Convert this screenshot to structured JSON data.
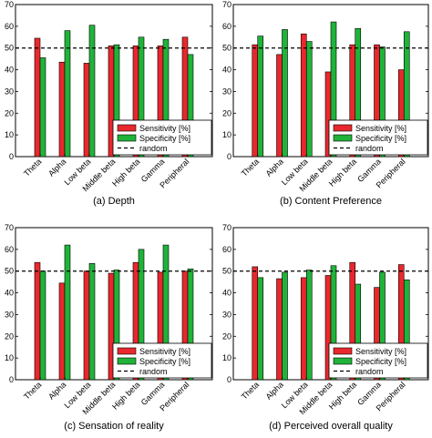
{
  "colors": {
    "sensitivity": "#e8282d",
    "specificity": "#1fb33a",
    "random_line": "#000000"
  },
  "chart_data": [
    {
      "type": "bar",
      "caption": "(a)  Depth",
      "categories": [
        "Theta",
        "Alpha",
        "Low beta",
        "Middle beta",
        "High beta",
        "Gamma",
        "Peripheral"
      ],
      "series": [
        {
          "name": "Sensitivity [%]",
          "values": [
            54.5,
            43.5,
            43,
            51,
            51,
            51,
            55
          ]
        },
        {
          "name": "Specificity [%]",
          "values": [
            45.5,
            58,
            60.5,
            51.5,
            55,
            54,
            47
          ]
        }
      ],
      "random": 50,
      "ylim": [
        0,
        70
      ],
      "yticks": [
        0,
        10,
        20,
        30,
        40,
        50,
        60,
        70
      ],
      "legend": [
        "Sensitivity [%]",
        "Specificity [%]",
        "random"
      ],
      "legend_position": "lower-right"
    },
    {
      "type": "bar",
      "caption": "(b)  Content Preference",
      "categories": [
        "Theta",
        "Alpha",
        "Low beta",
        "Middle beta",
        "High beta",
        "Gamma",
        "Peripheral"
      ],
      "series": [
        {
          "name": "Sensitivity [%]",
          "values": [
            51.5,
            47,
            56.5,
            39,
            51.5,
            51.5,
            40
          ]
        },
        {
          "name": "Specificity [%]",
          "values": [
            55.5,
            58.5,
            53,
            62,
            59,
            50.5,
            57.5
          ]
        }
      ],
      "random": 50,
      "ylim": [
        0,
        70
      ],
      "yticks": [
        0,
        10,
        20,
        30,
        40,
        50,
        60,
        70
      ],
      "legend": [
        "Sensitivity [%]",
        "Specificity [%]",
        "random"
      ],
      "legend_position": "lower-right"
    },
    {
      "type": "bar",
      "caption": "(c)  Sensation of reality",
      "categories": [
        "Theta",
        "Alpha",
        "Low beta",
        "Middle beta",
        "High beta",
        "Gamma",
        "Peripheral"
      ],
      "series": [
        {
          "name": "Sensitivity [%]",
          "values": [
            54,
            44.5,
            50,
            49,
            54,
            49.5,
            50
          ]
        },
        {
          "name": "Specificity [%]",
          "values": [
            50,
            62,
            53.5,
            50.5,
            60,
            62,
            51
          ]
        }
      ],
      "random": 50,
      "ylim": [
        0,
        70
      ],
      "yticks": [
        0,
        10,
        20,
        30,
        40,
        50,
        60,
        70
      ],
      "legend": [
        "Sensitivity [%]",
        "Specificity [%]",
        "random"
      ],
      "legend_position": "lower-right"
    },
    {
      "type": "bar",
      "caption": "(d)  Perceived overall quality",
      "categories": [
        "Theta",
        "Alpha",
        "Low beta",
        "Middle beta",
        "High beta",
        "Gamma",
        "Peripheral"
      ],
      "series": [
        {
          "name": "Sensitivity [%]",
          "values": [
            52,
            46.5,
            47,
            48,
            54,
            42.5,
            53
          ]
        },
        {
          "name": "Specificity [%]",
          "values": [
            47,
            49.5,
            50.5,
            52.5,
            44,
            49.5,
            46
          ]
        }
      ],
      "random": 50,
      "ylim": [
        0,
        70
      ],
      "yticks": [
        0,
        10,
        20,
        30,
        40,
        50,
        60,
        70
      ],
      "legend": [
        "Sensitivity [%]",
        "Specificity [%]",
        "random"
      ],
      "legend_position": "lower-right"
    }
  ]
}
